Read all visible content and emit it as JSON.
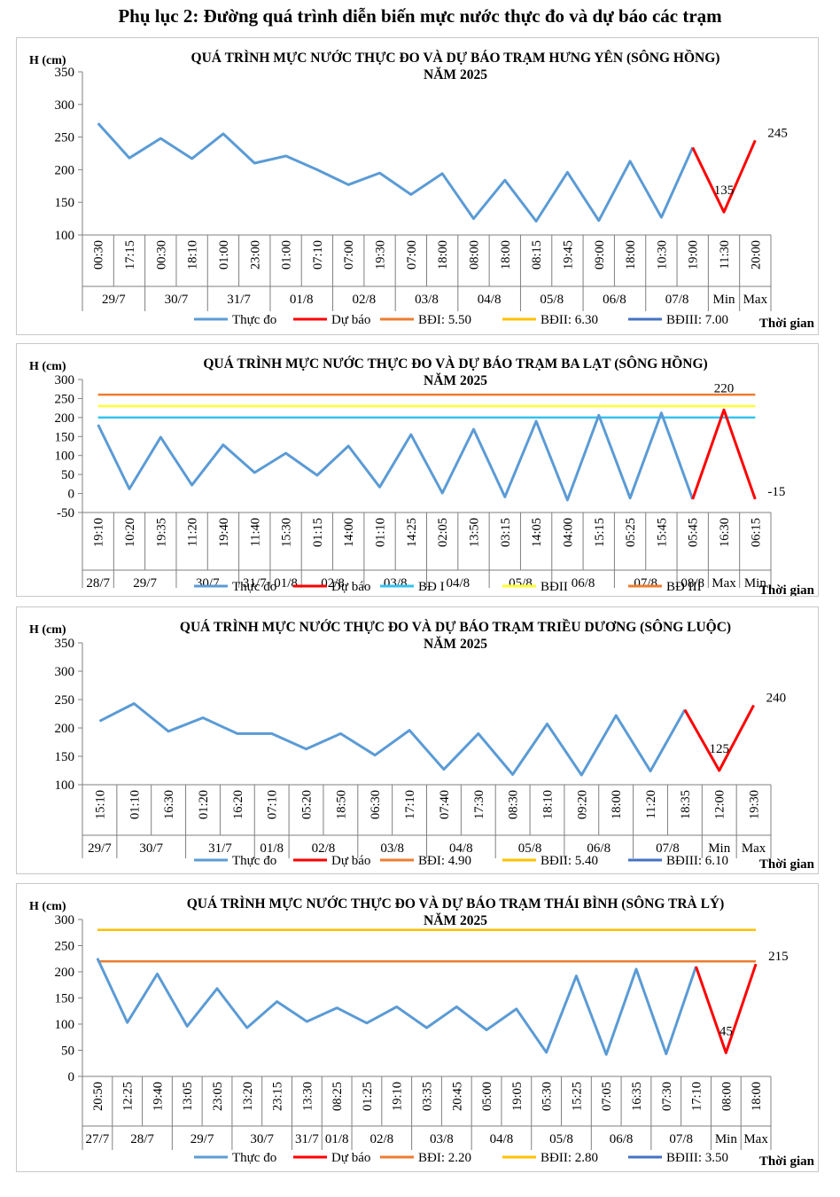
{
  "page_title": "Phụ lục 2: Đường quá trình diễn biến mực nước thực đo và dự báo các trạm",
  "colors": {
    "observed": "#5B9BD5",
    "forecast": "#FF0000",
    "bd1": "#ED7D31",
    "bd2": "#FFC000",
    "bd3": "#4472C4",
    "bd1_light": "#33C3F0",
    "bd2_light": "#FFFF33"
  },
  "chart_data": [
    {
      "type": "line",
      "title": "QUÁ TRÌNH MỰC NƯỚC THỰC ĐO VÀ DỰ BÁO TRẠM HƯNG YÊN  (SÔNG HỒNG)",
      "subtitle": "NĂM 2025",
      "ylabel": "H (cm)",
      "xlabel": "Thời gian",
      "ylim": [
        100,
        350
      ],
      "yticks": [
        "100",
        "150",
        "200",
        "250",
        "300",
        "350"
      ],
      "times": [
        "00:30",
        "17:15",
        "00:30",
        "18:10",
        "01:00",
        "23:00",
        "01:00",
        "07:10",
        "07:00",
        "19:30",
        "07:00",
        "18:00",
        "08:00",
        "18:00",
        "08:15",
        "19:45",
        "09:00",
        "18:00",
        "10:30",
        "19:00",
        "11:30",
        "20:00"
      ],
      "date_groups": [
        {
          "label": "29/7",
          "span": 2
        },
        {
          "label": "30/7",
          "span": 2
        },
        {
          "label": "31/7",
          "span": 2
        },
        {
          "label": "01/8",
          "span": 2
        },
        {
          "label": "02/8",
          "span": 2
        },
        {
          "label": "03/8",
          "span": 2
        },
        {
          "label": "04/8",
          "span": 2
        },
        {
          "label": "05/8",
          "span": 2
        },
        {
          "label": "06/8",
          "span": 2
        },
        {
          "label": "07/8",
          "span": 2
        },
        {
          "label": "Min",
          "span": 1
        },
        {
          "label": "Max",
          "span": 1
        }
      ],
      "observed": [
        271,
        218,
        248,
        217,
        255,
        210,
        221,
        200,
        177,
        195,
        162,
        194,
        125,
        184,
        121,
        196,
        122,
        213,
        127,
        234
      ],
      "forecast": [
        {
          "i": 19,
          "v": 234
        },
        {
          "i": 20,
          "v": 135
        },
        {
          "i": 21,
          "v": 245
        }
      ],
      "data_labels": [
        {
          "i": 20,
          "text": "135"
        },
        {
          "i": 21,
          "text": "245"
        }
      ],
      "thresholds": [],
      "legend": [
        {
          "label": "Thực đo",
          "color_key": "observed"
        },
        {
          "label": "Dự báo",
          "color_key": "forecast"
        },
        {
          "label": "BĐI: 5.50",
          "color_key": "bd1"
        },
        {
          "label": "BĐII: 6.30",
          "color_key": "bd2"
        },
        {
          "label": "BĐIII: 7.00",
          "color_key": "bd3"
        }
      ]
    },
    {
      "type": "line",
      "title": "QUÁ TRÌNH MỰC NƯỚC THỰC ĐO VÀ DỰ BÁO TRẠM BA LẠT (SÔNG HỒNG)",
      "subtitle": "NĂM 2025",
      "ylabel": "H (cm)",
      "xlabel": "Thời gian",
      "ylim": [
        -50,
        300
      ],
      "yticks": [
        "-50",
        "0",
        "50",
        "100",
        "150",
        "200",
        "250",
        "300"
      ],
      "times": [
        "19:10",
        "10:20",
        "19:35",
        "11:20",
        "19:40",
        "11:40",
        "15:30",
        "01:15",
        "14:00",
        "01:10",
        "14:25",
        "02:05",
        "13:50",
        "03:15",
        "14:05",
        "04:00",
        "15:15",
        "05:25",
        "15:45",
        "05:45",
        "16:30",
        "06:15"
      ],
      "date_groups": [
        {
          "label": "28/7",
          "span": 1
        },
        {
          "label": "29/7",
          "span": 2
        },
        {
          "label": "30/7",
          "span": 2
        },
        {
          "label": "31/7",
          "span": 1
        },
        {
          "label": "01/8",
          "span": 1
        },
        {
          "label": "02/8",
          "span": 2
        },
        {
          "label": "03/8",
          "span": 2
        },
        {
          "label": "04/8",
          "span": 2
        },
        {
          "label": "05/8",
          "span": 2
        },
        {
          "label": "06/8",
          "span": 2
        },
        {
          "label": "07/8",
          "span": 2
        },
        {
          "label": "08/8",
          "span": 1
        },
        {
          "label": "Max",
          "span": 1
        },
        {
          "label": "Min",
          "span": 1
        }
      ],
      "observed": [
        181,
        12,
        148,
        22,
        128,
        55,
        106,
        48,
        125,
        17,
        155,
        1,
        169,
        -9,
        190,
        -17,
        206,
        -12,
        212,
        -15
      ],
      "forecast": [
        {
          "i": 19,
          "v": -15
        },
        {
          "i": 20,
          "v": 220
        },
        {
          "i": 21,
          "v": -15
        }
      ],
      "data_labels": [
        {
          "i": 20,
          "text": "220"
        },
        {
          "i": 21,
          "text": "-15"
        }
      ],
      "thresholds": [
        {
          "value": 200,
          "color_key": "bd1_light"
        },
        {
          "value": 230,
          "color_key": "bd2_light"
        },
        {
          "value": 260,
          "color_key": "bd1"
        }
      ],
      "legend": [
        {
          "label": "Thực đo",
          "color_key": "observed"
        },
        {
          "label": "Dự báo",
          "color_key": "forecast"
        },
        {
          "label": "BĐ I",
          "color_key": "bd1_light"
        },
        {
          "label": "BĐII",
          "color_key": "bd2_light"
        },
        {
          "label": "BĐ III",
          "color_key": "bd1"
        }
      ]
    },
    {
      "type": "line",
      "title": "QUÁ TRÌNH MỰC NƯỚC THỰC ĐO VÀ DỰ BÁO TRẠM TRIỀU DƯƠNG  (SÔNG LUỘC)",
      "subtitle": "NĂM 2025",
      "ylabel": "H (cm)",
      "xlabel": "Thời gian",
      "ylim": [
        100,
        350
      ],
      "yticks": [
        "100",
        "150",
        "200",
        "250",
        "300",
        "350"
      ],
      "times": [
        "15:10",
        "01:10",
        "16:30",
        "01:20",
        "16:20",
        "07:10",
        "05:20",
        "18:50",
        "06:30",
        "17:10",
        "07:40",
        "17:30",
        "08:30",
        "18:10",
        "09:20",
        "18:00",
        "11:20",
        "18:35",
        "12:00",
        "19:30"
      ],
      "date_groups": [
        {
          "label": "29/7",
          "span": 1
        },
        {
          "label": "30/7",
          "span": 2
        },
        {
          "label": "31/7",
          "span": 2
        },
        {
          "label": "01/8",
          "span": 1
        },
        {
          "label": "02/8",
          "span": 2
        },
        {
          "label": "03/8",
          "span": 2
        },
        {
          "label": "04/8",
          "span": 2
        },
        {
          "label": "05/8",
          "span": 2
        },
        {
          "label": "06/8",
          "span": 2
        },
        {
          "label": "07/8",
          "span": 2
        },
        {
          "label": "Min",
          "span": 1
        },
        {
          "label": "Max",
          "span": 1
        }
      ],
      "observed": [
        212,
        243,
        194,
        218,
        190,
        190,
        163,
        190,
        152,
        196,
        127,
        190,
        118,
        207,
        117,
        222,
        124,
        232
      ],
      "forecast": [
        {
          "i": 17,
          "v": 232
        },
        {
          "i": 18,
          "v": 125
        },
        {
          "i": 19,
          "v": 240
        }
      ],
      "data_labels": [
        {
          "i": 18,
          "text": "125"
        },
        {
          "i": 19,
          "text": "240"
        }
      ],
      "thresholds": [],
      "legend": [
        {
          "label": "Thực đo",
          "color_key": "observed"
        },
        {
          "label": "Dự báo",
          "color_key": "forecast"
        },
        {
          "label": "BĐI: 4.90",
          "color_key": "bd1"
        },
        {
          "label": "BĐII: 5.40",
          "color_key": "bd2"
        },
        {
          "label": "BĐIII: 6.10",
          "color_key": "bd3"
        }
      ]
    },
    {
      "type": "line",
      "title": "QUÁ TRÌNH MỰC NƯỚC THỰC ĐO VÀ DỰ BÁO TRẠM THÁI BÌNH (SÔNG TRÀ LÝ)",
      "subtitle": "NĂM 2025",
      "ylabel": "H (cm)",
      "xlabel": "Thời gian",
      "ylim": [
        0,
        300
      ],
      "yticks": [
        "0",
        "50",
        "100",
        "150",
        "200",
        "250",
        "300"
      ],
      "times": [
        "20:50",
        "12:25",
        "19:40",
        "13:05",
        "23:05",
        "13:20",
        "23:15",
        "13:30",
        "08:25",
        "01:25",
        "19:10",
        "03:35",
        "20:45",
        "05:00",
        "19:05",
        "05:30",
        "15:25",
        "07:05",
        "16:35",
        "07:30",
        "17:10",
        "08:00",
        "18:00"
      ],
      "date_groups": [
        {
          "label": "27/7",
          "span": 1
        },
        {
          "label": "28/7",
          "span": 2
        },
        {
          "label": "29/7",
          "span": 2
        },
        {
          "label": "30/7",
          "span": 2
        },
        {
          "label": "31/7",
          "span": 1
        },
        {
          "label": "01/8",
          "span": 1
        },
        {
          "label": "02/8",
          "span": 2
        },
        {
          "label": "03/8",
          "span": 2
        },
        {
          "label": "04/8",
          "span": 2
        },
        {
          "label": "05/8",
          "span": 2
        },
        {
          "label": "06/8",
          "span": 2
        },
        {
          "label": "07/8",
          "span": 2
        },
        {
          "label": "Min",
          "span": 1
        },
        {
          "label": "Max",
          "span": 1
        }
      ],
      "observed": [
        226,
        103,
        196,
        96,
        168,
        93,
        143,
        105,
        131,
        102,
        133,
        93,
        133,
        89,
        129,
        46,
        192,
        42,
        205,
        43,
        210
      ],
      "forecast": [
        {
          "i": 20,
          "v": 210
        },
        {
          "i": 21,
          "v": 45
        },
        {
          "i": 22,
          "v": 215
        }
      ],
      "data_labels": [
        {
          "i": 21,
          "text": "45"
        },
        {
          "i": 22,
          "text": "215"
        }
      ],
      "thresholds": [
        {
          "value": 220,
          "color_key": "bd1"
        },
        {
          "value": 280,
          "color_key": "bd2"
        }
      ],
      "legend": [
        {
          "label": "Thực đo",
          "color_key": "observed"
        },
        {
          "label": "Dự báo",
          "color_key": "forecast"
        },
        {
          "label": "BĐI: 2.20",
          "color_key": "bd1"
        },
        {
          "label": "BĐII: 2.80",
          "color_key": "bd2"
        },
        {
          "label": "BĐIII: 3.50",
          "color_key": "bd3"
        }
      ]
    }
  ]
}
